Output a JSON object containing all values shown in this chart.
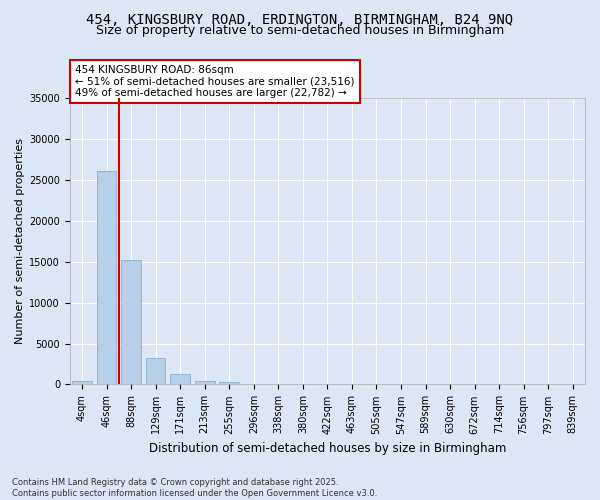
{
  "title1": "454, KINGSBURY ROAD, ERDINGTON, BIRMINGHAM, B24 9NQ",
  "title2": "Size of property relative to semi-detached houses in Birmingham",
  "xlabel": "Distribution of semi-detached houses by size in Birmingham",
  "ylabel": "Number of semi-detached properties",
  "categories": [
    "4sqm",
    "46sqm",
    "88sqm",
    "129sqm",
    "171sqm",
    "213sqm",
    "255sqm",
    "296sqm",
    "338sqm",
    "380sqm",
    "422sqm",
    "463sqm",
    "505sqm",
    "547sqm",
    "589sqm",
    "630sqm",
    "672sqm",
    "714sqm",
    "756sqm",
    "797sqm",
    "839sqm"
  ],
  "values": [
    430,
    26100,
    15200,
    3200,
    1300,
    480,
    280,
    0,
    0,
    0,
    0,
    0,
    0,
    0,
    0,
    0,
    0,
    0,
    0,
    0,
    0
  ],
  "bar_color": "#b8cfe8",
  "bar_edge_color": "#7aaad0",
  "vline_color": "#cc0000",
  "annotation_text": "454 KINGSBURY ROAD: 86sqm\n← 51% of semi-detached houses are smaller (23,516)\n49% of semi-detached houses are larger (22,782) →",
  "annotation_box_color": "#cc0000",
  "ylim": [
    0,
    35000
  ],
  "yticks": [
    0,
    5000,
    10000,
    15000,
    20000,
    25000,
    30000,
    35000
  ],
  "background_color": "#dce6f5",
  "grid_color": "#ffffff",
  "footer_text": "Contains HM Land Registry data © Crown copyright and database right 2025.\nContains public sector information licensed under the Open Government Licence v3.0.",
  "title1_fontsize": 10,
  "title2_fontsize": 9,
  "xlabel_fontsize": 8.5,
  "ylabel_fontsize": 8,
  "tick_fontsize": 7,
  "annotation_fontsize": 7.5,
  "footer_fontsize": 6
}
